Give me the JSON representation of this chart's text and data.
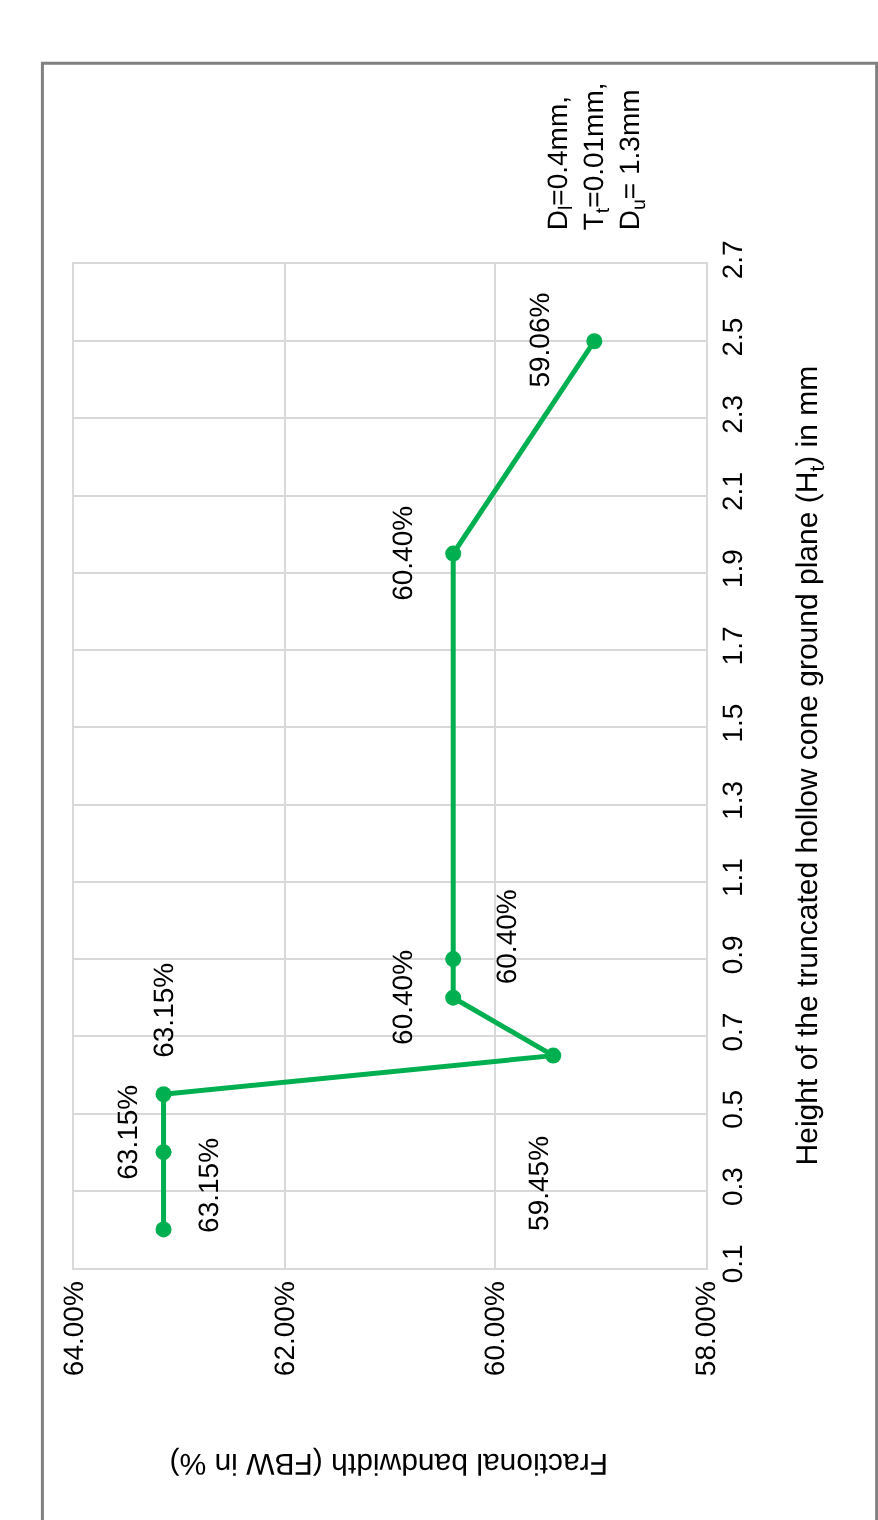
{
  "chart_data": {
    "type": "line",
    "xlabel": "Fractional bandwidth (FBW in %)",
    "ylabel": "Height of the truncated hollow cone ground plane (H$_{t}$) in mm",
    "annotations": [
      "D$_{l}$=0.4mm,\nT$_{t}$=0.01mm,\nD$_{u}$= 1.3mm",
      {
        "text": "63.15%",
        "x": 63.15,
        "y": 0.2
      },
      {
        "text": "63.15%",
        "x": 63.15,
        "y": 0.4
      },
      {
        "text": "63.15%",
        "x": 63.15,
        "y": 0.55
      },
      {
        "text": "59.45%",
        "x": 59.45,
        "y": 0.65
      },
      {
        "text": "60.40%",
        "x": 60.4,
        "y": 0.8
      },
      {
        "text": "60.40%",
        "x": 60.4,
        "y": 0.9
      },
      {
        "text": "60.40%",
        "x": 60.4,
        "y": 1.95
      },
      {
        "text": "59.06%",
        "x": 59.06,
        "y": 2.5
      }
    ],
    "x": [
      63.15,
      63.15,
      63.15,
      59.45,
      60.4,
      60.4,
      60.4,
      59.06
    ],
    "series": [
      {
        "color": "#00b050",
        "values": [
          0.2,
          0.4,
          0.55,
          0.65,
          0.8,
          0.9,
          1.95,
          2.5
        ]
      }
    ],
    "xlim": [
      64,
      58
    ],
    "xticks": [
      {
        "value": 64,
        "label": "64.00%"
      },
      {
        "value": 62,
        "label": "62.00%"
      },
      {
        "value": 60,
        "label": "60.00%"
      },
      {
        "value": 58,
        "label": "58.00%"
      }
    ],
    "ylim": [
      0.1,
      2.7
    ],
    "yticks": [
      0.1,
      0.3,
      0.5,
      0.7,
      0.9,
      1.1,
      1.3,
      1.5,
      1.7,
      1.9,
      2.1,
      2.3,
      2.5,
      2.7
    ],
    "grid": true,
    "marker": "circle",
    "line_style": "solid",
    "legend": false
  }
}
